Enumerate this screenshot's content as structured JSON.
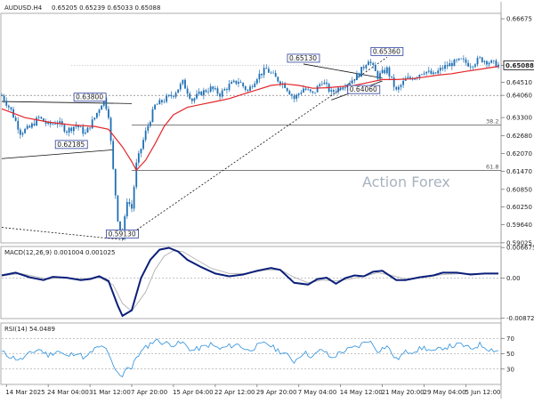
{
  "header": {
    "symbol": "AUDUSD.H4",
    "ohlc": "0.65205 0.65239 0.65033 0.65088"
  },
  "watermark": "Action Forex",
  "colors": {
    "candle": "#1f6fb4",
    "ma": "#e3262a",
    "macd": "#0b1f7a",
    "macd_signal": "#b8b8b8",
    "rsi": "#2a8fdc",
    "grid": "#c8c8c8",
    "current_box": "#000000"
  },
  "chart_data": [
    {
      "type": "candlestick",
      "panel": "price",
      "ylim": [
        0.5902,
        0.6686
      ],
      "y_ticks": [
        "0.66675",
        "0.65088",
        "0.64510",
        "0.64060",
        "0.63300",
        "0.62680",
        "0.62070",
        "0.61470",
        "0.60850",
        "0.60250",
        "0.59640",
        "0.59025"
      ],
      "current_price": "0.65088",
      "x_ticks": [
        "14 Mar 2025",
        "24 Mar 04:00",
        "31 Mar 12:00",
        "7 Apr 20:00",
        "15 Apr 04:00",
        "22 Apr 12:00",
        "29 Apr 20:00",
        "7 May 04:00",
        "14 May 12:00",
        "21 May 20:00",
        "29 May 04:00",
        "5 Jun 12:00"
      ],
      "series": [
        {
          "name": "Price",
          "kind": "ohlc"
        },
        {
          "name": "MA",
          "kind": "line"
        }
      ],
      "price_path": [
        [
          0,
          0.6405
        ],
        [
          4,
          0.6355
        ],
        [
          8,
          0.628
        ],
        [
          12,
          0.6295
        ],
        [
          16,
          0.633
        ],
        [
          20,
          0.6305
        ],
        [
          24,
          0.6315
        ],
        [
          28,
          0.6285
        ],
        [
          32,
          0.6305
        ],
        [
          36,
          0.6275
        ],
        [
          40,
          0.633
        ],
        [
          44,
          0.6395
        ],
        [
          46,
          0.634
        ],
        [
          48,
          0.615
        ],
        [
          50,
          0.5985
        ],
        [
          52,
          0.5918
        ],
        [
          54,
          0.605
        ],
        [
          56,
          0.602
        ],
        [
          58,
          0.617
        ],
        [
          62,
          0.628
        ],
        [
          66,
          0.637
        ],
        [
          70,
          0.639
        ],
        [
          74,
          0.641
        ],
        [
          78,
          0.645
        ],
        [
          82,
          0.639
        ],
        [
          86,
          0.6415
        ],
        [
          90,
          0.643
        ],
        [
          94,
          0.641
        ],
        [
          98,
          0.644
        ],
        [
          102,
          0.6455
        ],
        [
          106,
          0.642
        ],
        [
          110,
          0.647
        ],
        [
          114,
          0.6495
        ],
        [
          118,
          0.6465
        ],
        [
          122,
          0.644
        ],
        [
          126,
          0.6395
        ],
        [
          130,
          0.643
        ],
        [
          134,
          0.641
        ],
        [
          138,
          0.6455
        ],
        [
          142,
          0.6415
        ],
        [
          146,
          0.6435
        ],
        [
          150,
          0.6452
        ],
        [
          154,
          0.648
        ],
        [
          158,
          0.653
        ],
        [
          162,
          0.647
        ],
        [
          166,
          0.6495
        ],
        [
          170,
          0.642
        ],
        [
          174,
          0.646
        ],
        [
          178,
          0.647
        ],
        [
          182,
          0.649
        ],
        [
          186,
          0.6475
        ],
        [
          190,
          0.65
        ],
        [
          194,
          0.6515
        ],
        [
          198,
          0.6525
        ],
        [
          202,
          0.651
        ],
        [
          206,
          0.653
        ],
        [
          210,
          0.652
        ],
        [
          214,
          0.6509
        ]
      ],
      "ma_path": [
        [
          0,
          0.636
        ],
        [
          10,
          0.633
        ],
        [
          20,
          0.6315
        ],
        [
          30,
          0.6305
        ],
        [
          40,
          0.63
        ],
        [
          46,
          0.629
        ],
        [
          52,
          0.623
        ],
        [
          56,
          0.618
        ],
        [
          58,
          0.615
        ],
        [
          62,
          0.6185
        ],
        [
          66,
          0.624
        ],
        [
          70,
          0.63
        ],
        [
          74,
          0.634
        ],
        [
          80,
          0.6365
        ],
        [
          86,
          0.6375
        ],
        [
          92,
          0.6385
        ],
        [
          98,
          0.6395
        ],
        [
          104,
          0.641
        ],
        [
          110,
          0.6425
        ],
        [
          116,
          0.644
        ],
        [
          122,
          0.6445
        ],
        [
          128,
          0.644
        ],
        [
          134,
          0.643
        ],
        [
          140,
          0.6432
        ],
        [
          146,
          0.6436
        ],
        [
          152,
          0.644
        ],
        [
          158,
          0.645
        ],
        [
          164,
          0.646
        ],
        [
          170,
          0.646
        ],
        [
          176,
          0.6462
        ],
        [
          182,
          0.6468
        ],
        [
          188,
          0.6475
        ],
        [
          194,
          0.648
        ],
        [
          200,
          0.6488
        ],
        [
          206,
          0.6495
        ],
        [
          214,
          0.6505
        ]
      ],
      "levels": [
        {
          "label": "0.65130",
          "price": 0.6513,
          "bar": 130
        },
        {
          "label": "0.65360",
          "price": 0.6536,
          "bar": 166
        },
        {
          "label": "0.63800",
          "price": 0.638,
          "bar": 38
        },
        {
          "label": "0.62185",
          "price": 0.62185,
          "bar": 30
        },
        {
          "label": "0.59130",
          "price": 0.5913,
          "bar": 52
        },
        {
          "label": "0.64060",
          "price": 0.6406,
          "bar": 156
        }
      ],
      "fibonacci": [
        {
          "label": "38.2",
          "price": 0.6305
        },
        {
          "label": "61.8",
          "price": 0.615
        }
      ],
      "horizontal_ref": [
        {
          "price": 0.6406
        }
      ],
      "trendlines": [
        {
          "from": [
            0,
            0.6385
          ],
          "to": [
            56,
            0.6378
          ],
          "style": "solid"
        },
        {
          "from": [
            0,
            0.619
          ],
          "to": [
            48,
            0.622
          ],
          "style": "solid"
        },
        {
          "from": [
            0,
            0.5955
          ],
          "to": [
            52,
            0.5913
          ],
          "style": "dashed"
        },
        {
          "from": [
            52,
            0.5913
          ],
          "to": [
            166,
            0.6536
          ],
          "style": "dashed"
        },
        {
          "from": [
            130,
            0.6513
          ],
          "to": [
            164,
            0.6465
          ],
          "style": "solid"
        },
        {
          "from": [
            142,
            0.639
          ],
          "to": [
            164,
            0.6455
          ],
          "style": "solid"
        }
      ]
    },
    {
      "type": "line",
      "panel": "macd",
      "title": "MACD(12,26,9) 0.001004 0.001025",
      "ylim": [
        -0.0088,
        0.0069
      ],
      "y_ticks": [
        "0.006675",
        "0.00",
        "-0.008724"
      ],
      "series": [
        {
          "name": "MACD",
          "points": [
            [
              0,
              0.0006
            ],
            [
              6,
              0.0012
            ],
            [
              12,
              0.0002
            ],
            [
              18,
              -0.0004
            ],
            [
              22,
              0.0003
            ],
            [
              28,
              0.0001
            ],
            [
              34,
              -0.0004
            ],
            [
              38,
              -0.0002
            ],
            [
              42,
              0.0004
            ],
            [
              46,
              -0.0006
            ],
            [
              50,
              -0.006
            ],
            [
              52,
              -0.0082
            ],
            [
              56,
              -0.007
            ],
            [
              60,
              0.0
            ],
            [
              64,
              0.004
            ],
            [
              68,
              0.0062
            ],
            [
              72,
              0.0066
            ],
            [
              76,
              0.0058
            ],
            [
              80,
              0.004
            ],
            [
              86,
              0.0024
            ],
            [
              92,
              0.001
            ],
            [
              98,
              0.0004
            ],
            [
              104,
              0.0008
            ],
            [
              110,
              0.0016
            ],
            [
              116,
              0.0022
            ],
            [
              120,
              0.0018
            ],
            [
              126,
              -0.001
            ],
            [
              132,
              -0.0014
            ],
            [
              136,
              -0.0002
            ],
            [
              140,
              0.0001
            ],
            [
              144,
              -0.0012
            ],
            [
              148,
              0.0
            ],
            [
              152,
              0.0006
            ],
            [
              156,
              0.0004
            ],
            [
              160,
              0.0014
            ],
            [
              164,
              0.0016
            ],
            [
              170,
              -0.0004
            ],
            [
              174,
              -0.0004
            ],
            [
              180,
              0.0002
            ],
            [
              186,
              0.0006
            ],
            [
              190,
              0.0012
            ],
            [
              196,
              0.0012
            ],
            [
              202,
              0.0008
            ],
            [
              208,
              0.001
            ],
            [
              214,
              0.001
            ]
          ]
        },
        {
          "name": "Signal",
          "points": [
            [
              0,
              0.0005
            ],
            [
              8,
              0.001
            ],
            [
              14,
              0.0004
            ],
            [
              20,
              -0.0002
            ],
            [
              26,
              0.0002
            ],
            [
              34,
              -0.0002
            ],
            [
              42,
              0.0002
            ],
            [
              48,
              -0.0015
            ],
            [
              52,
              -0.0055
            ],
            [
              56,
              -0.0072
            ],
            [
              62,
              -0.003
            ],
            [
              66,
              0.0018
            ],
            [
              70,
              0.0048
            ],
            [
              74,
              0.006
            ],
            [
              78,
              0.0058
            ],
            [
              84,
              0.004
            ],
            [
              90,
              0.0022
            ],
            [
              98,
              0.001
            ],
            [
              106,
              0.001
            ],
            [
              114,
              0.0018
            ],
            [
              120,
              0.0018
            ],
            [
              126,
              0.0002
            ],
            [
              132,
              -0.001
            ],
            [
              138,
              -0.0004
            ],
            [
              144,
              -0.0006
            ],
            [
              150,
              -0.0002
            ],
            [
              156,
              0.0004
            ],
            [
              162,
              0.0012
            ],
            [
              168,
              0.0006
            ],
            [
              174,
              -0.0002
            ],
            [
              182,
              0.0002
            ],
            [
              190,
              0.0008
            ],
            [
              198,
              0.001
            ],
            [
              206,
              0.001
            ],
            [
              214,
              0.001
            ]
          ]
        }
      ]
    },
    {
      "type": "line",
      "panel": "rsi",
      "title": "RSI(14) 54.0489",
      "ylim": [
        10,
        90
      ],
      "y_ticks": [
        "70",
        "50",
        "30"
      ],
      "reference_lines": [
        70,
        50,
        30
      ],
      "series": [
        {
          "name": "RSI",
          "points": [
            [
              0,
              52
            ],
            [
              4,
              46
            ],
            [
              8,
              42
            ],
            [
              12,
              50
            ],
            [
              16,
              56
            ],
            [
              20,
              48
            ],
            [
              24,
              54
            ],
            [
              28,
              46
            ],
            [
              32,
              52
            ],
            [
              36,
              44
            ],
            [
              40,
              56
            ],
            [
              44,
              60
            ],
            [
              46,
              48
            ],
            [
              48,
              34
            ],
            [
              50,
              24
            ],
            [
              52,
              22
            ],
            [
              54,
              34
            ],
            [
              56,
              30
            ],
            [
              58,
              46
            ],
            [
              62,
              58
            ],
            [
              66,
              68
            ],
            [
              70,
              64
            ],
            [
              74,
              62
            ],
            [
              78,
              64
            ],
            [
              82,
              54
            ],
            [
              86,
              58
            ],
            [
              90,
              62
            ],
            [
              94,
              56
            ],
            [
              98,
              60
            ],
            [
              102,
              62
            ],
            [
              106,
              54
            ],
            [
              110,
              60
            ],
            [
              114,
              64
            ],
            [
              118,
              56
            ],
            [
              122,
              50
            ],
            [
              126,
              40
            ],
            [
              130,
              52
            ],
            [
              134,
              46
            ],
            [
              138,
              56
            ],
            [
              142,
              44
            ],
            [
              146,
              52
            ],
            [
              150,
              56
            ],
            [
              154,
              60
            ],
            [
              158,
              68
            ],
            [
              162,
              54
            ],
            [
              166,
              60
            ],
            [
              170,
              42
            ],
            [
              174,
              52
            ],
            [
              178,
              54
            ],
            [
              182,
              58
            ],
            [
              186,
              52
            ],
            [
              190,
              58
            ],
            [
              194,
              60
            ],
            [
              198,
              62
            ],
            [
              202,
              56
            ],
            [
              206,
              62
            ],
            [
              210,
              56
            ],
            [
              214,
              54
            ]
          ]
        }
      ]
    }
  ]
}
